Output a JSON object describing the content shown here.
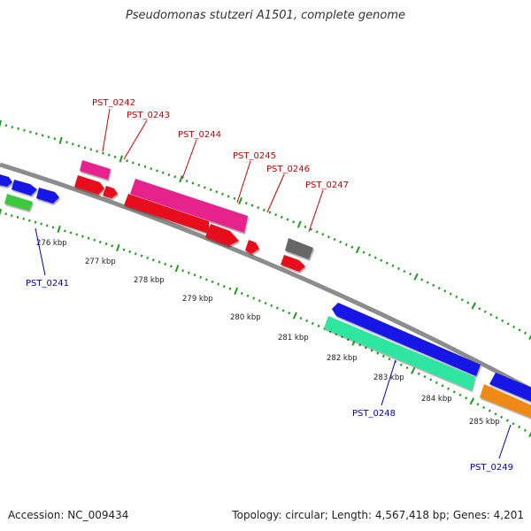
{
  "title": "Pseudomonas stutzeri A1501, complete genome",
  "footer": {
    "accession": "Accession: NC_009434",
    "topology": "Topology: circular; Length: 4,567,418 bp; Genes: 4,201"
  },
  "colors": {
    "backbone": "#8c8c8c",
    "tick": "#1f9a1f",
    "label_top": "#cc0000",
    "label_bottom": "#0000bb",
    "cds_pink": "#e8248c",
    "cds_red": "#e8101a",
    "cds_blue": "#1414e6",
    "cds_green": "#3cc83c",
    "cds_teal": "#2ee6a0",
    "cds_gray": "#666666",
    "cds_orange": "#f08a14"
  },
  "ruler": {
    "unit": "kbp",
    "labels": [
      "276 kbp",
      "277 kbp",
      "278 kbp",
      "279 kbp",
      "280 kbp",
      "281 kbp",
      "282 kbp",
      "283 kbp",
      "284 kbp",
      "285 kbp"
    ]
  },
  "gene_labels": {
    "top": [
      "PST_0242",
      "PST_0243",
      "PST_0244",
      "PST_0245",
      "PST_0246",
      "PST_0247"
    ],
    "bottom": [
      "PST_0241",
      "PST_0248",
      "PST_0249"
    ]
  }
}
